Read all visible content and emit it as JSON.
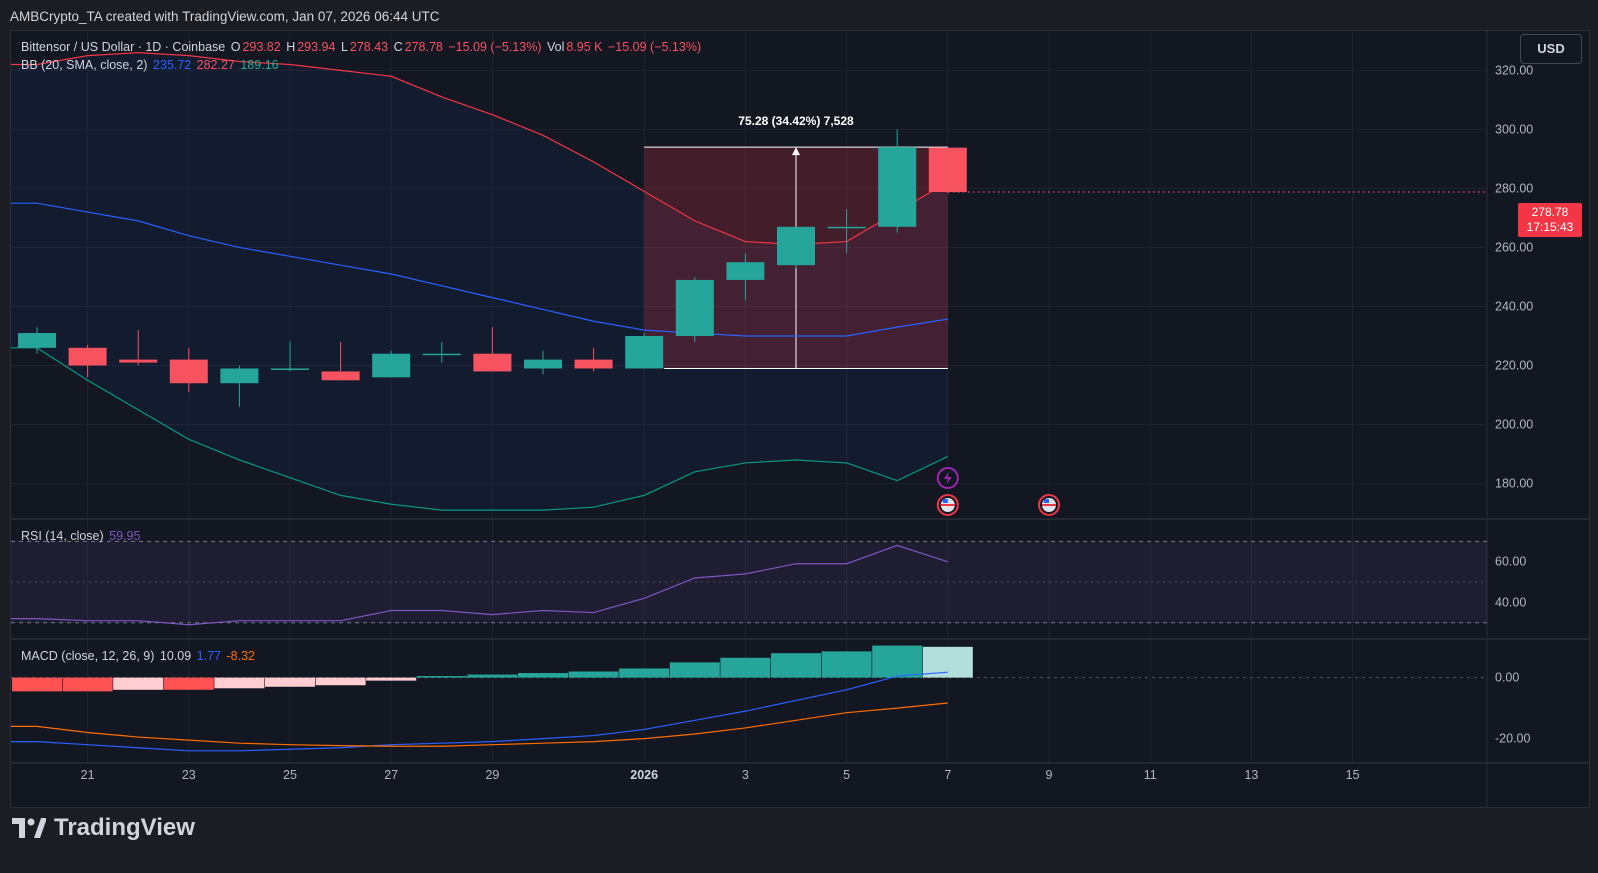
{
  "credit": "AMBCrypto_TA created with TradingView.com, Jan 07, 2026 06:44 UTC",
  "legend": {
    "symbol": "Bittensor / US Dollar · 1D · Coinbase",
    "o_label": "O",
    "o": "293.82",
    "h_label": "H",
    "h": "293.94",
    "l_label": "L",
    "l": "278.43",
    "c_label": "C",
    "c": "278.78",
    "change": "−15.09 (−5.13%)",
    "vol_label": "Vol",
    "vol": "8.95 K",
    "vol_change": "−15.09 (−5.13%)",
    "bb_label": "BB (20, SMA, close, 2)",
    "bb_basis": "235.72",
    "bb_upper": "282.27",
    "bb_lower": "189.16",
    "rsi_label": "RSI (14, close)",
    "rsi_value": "59.95",
    "macd_label": "MACD (close, 12, 26, 9)",
    "macd_hist": "10.09",
    "macd_line": "1.77",
    "macd_signal": "-8.32"
  },
  "currency_button": "USD",
  "last_price": {
    "price": "278.78",
    "countdown": "17:15:43"
  },
  "measure_label": "75.28 (34.42%) 7,528",
  "brand": "TradingView",
  "colors": {
    "up": "#26a69a",
    "down": "#f7525f",
    "bb_basis": "#2962ff",
    "bb_upper": "#f23645",
    "bb_lower": "#089981",
    "rsi": "#7e57c2",
    "macd": "#2962ff",
    "signal": "#ff6d00"
  },
  "chart_data": [
    {
      "type": "candlestick",
      "title": "Bittensor / US Dollar · 1D · Coinbase",
      "x_ticks": [
        "21",
        "23",
        "25",
        "27",
        "29",
        "2026",
        "3",
        "5",
        "7",
        "9",
        "11",
        "13",
        "15"
      ],
      "y_ticks": [
        "320.00",
        "300.00",
        "280.00",
        "260.00",
        "240.00",
        "220.00",
        "200.00",
        "180.00"
      ],
      "ylim": [
        168,
        333
      ],
      "dates": [
        "Dec 20",
        "Dec 21",
        "Dec 22",
        "Dec 23",
        "Dec 24",
        "Dec 25",
        "Dec 26",
        "Dec 27",
        "Dec 28",
        "Dec 29",
        "Dec 30",
        "Dec 31",
        "Jan 1",
        "Jan 2",
        "Jan 3",
        "Jan 4",
        "Jan 5",
        "Jan 6",
        "Jan 7"
      ],
      "candles": [
        {
          "o": 226,
          "h": 233,
          "l": 224,
          "c": 231
        },
        {
          "o": 226,
          "h": 227,
          "l": 216,
          "c": 220
        },
        {
          "o": 222,
          "h": 232,
          "l": 220,
          "c": 221
        },
        {
          "o": 222,
          "h": 226,
          "l": 211,
          "c": 214
        },
        {
          "o": 214,
          "h": 220,
          "l": 206,
          "c": 219
        },
        {
          "o": 219,
          "h": 228,
          "l": 218,
          "c": 219
        },
        {
          "o": 218,
          "h": 228,
          "l": 215,
          "c": 215
        },
        {
          "o": 216,
          "h": 225,
          "l": 216,
          "c": 224
        },
        {
          "o": 224,
          "h": 228,
          "l": 221,
          "c": 224
        },
        {
          "o": 224,
          "h": 233,
          "l": 218,
          "c": 218
        },
        {
          "o": 219,
          "h": 225,
          "l": 217,
          "c": 222
        },
        {
          "o": 222,
          "h": 226,
          "l": 218,
          "c": 219
        },
        {
          "o": 219,
          "h": 231,
          "l": 219,
          "c": 230
        },
        {
          "o": 230,
          "h": 250,
          "l": 228,
          "c": 249
        },
        {
          "o": 249,
          "h": 258,
          "l": 242,
          "c": 255
        },
        {
          "o": 254,
          "h": 267,
          "l": 253,
          "c": 267
        },
        {
          "o": 267,
          "h": 273,
          "l": 258,
          "c": 267
        },
        {
          "o": 267,
          "h": 300,
          "l": 265,
          "c": 294
        },
        {
          "o": 293.82,
          "h": 293.94,
          "l": 278.43,
          "c": 278.78
        }
      ],
      "bb_upper": [
        322,
        325,
        326,
        325,
        323,
        322,
        320,
        318,
        311,
        305,
        298,
        289,
        279,
        269,
        262,
        261,
        262,
        272,
        282.27
      ],
      "bb_basis": [
        275,
        272,
        269,
        264,
        260,
        257,
        254,
        251,
        247,
        243,
        239,
        235,
        232,
        231,
        230,
        230,
        230,
        233,
        235.72
      ],
      "bb_lower": [
        226,
        215,
        205,
        195,
        188,
        182,
        176,
        173,
        171,
        171,
        171,
        172,
        176,
        184,
        187,
        188,
        187,
        181,
        189.16
      ],
      "measure": {
        "from": 219,
        "to": 294,
        "start": "Jan 1",
        "end": "Jan 7",
        "change": 75.28,
        "percent": 34.42
      }
    },
    {
      "type": "line",
      "title": "RSI (14, close)",
      "y_ticks": [
        "60.00",
        "40.00"
      ],
      "ylim": [
        22,
        80
      ],
      "bands": [
        30,
        70
      ],
      "values": [
        32,
        31,
        31,
        29,
        31,
        31,
        31,
        36,
        36,
        34,
        36,
        35,
        42,
        52,
        54,
        59,
        59,
        68,
        59.95
      ]
    },
    {
      "type": "bar_line",
      "title": "MACD (close, 12, 26, 9)",
      "y_ticks": [
        "0.00",
        "-20.00"
      ],
      "ylim": [
        -28,
        12
      ],
      "histogram": [
        -4.5,
        -4.5,
        -4,
        -4,
        -3.5,
        -3,
        -2.5,
        -1,
        0.5,
        1,
        1.5,
        2,
        3,
        5,
        6.5,
        8,
        8.6,
        10.5,
        10.09
      ],
      "macd": [
        -21,
        -22,
        -23,
        -24,
        -24,
        -23.5,
        -23,
        -22,
        -21.5,
        -21,
        -20,
        -19,
        -17,
        -14,
        -11,
        -7.5,
        -4,
        0.5,
        1.77
      ],
      "signal": [
        -16,
        -18,
        -19.5,
        -20.5,
        -21.5,
        -22,
        -22.3,
        -22.5,
        -22.5,
        -22,
        -21.5,
        -21,
        -20,
        -18.5,
        -16.5,
        -14,
        -11.5,
        -10,
        -8.32
      ]
    }
  ]
}
